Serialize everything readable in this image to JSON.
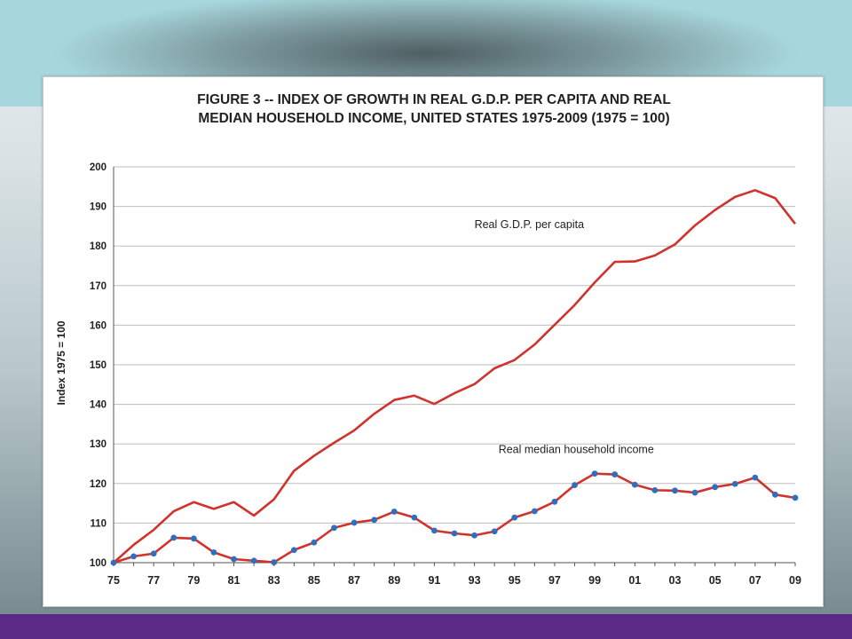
{
  "chart_data": {
    "type": "line",
    "title_lines": [
      "FIGURE 3 -- INDEX OF GROWTH IN REAL G.D.P. PER CAPITA AND REAL",
      "MEDIAN HOUSEHOLD INCOME, UNITED STATES 1975-2009 (1975 = 100)"
    ],
    "ylabel": "Index 1975 = 100",
    "xlabel": "",
    "ylim": [
      100,
      200
    ],
    "yticks": [
      100,
      110,
      120,
      130,
      140,
      150,
      160,
      170,
      180,
      190,
      200
    ],
    "x": [
      1975,
      1976,
      1977,
      1978,
      1979,
      1980,
      1981,
      1982,
      1983,
      1984,
      1985,
      1986,
      1987,
      1988,
      1989,
      1990,
      1991,
      1992,
      1993,
      1994,
      1995,
      1996,
      1997,
      1998,
      1999,
      2000,
      2001,
      2002,
      2003,
      2004,
      2005,
      2006,
      2007,
      2008,
      2009
    ],
    "xtick_labels": [
      "75",
      "77",
      "79",
      "81",
      "83",
      "85",
      "87",
      "89",
      "91",
      "93",
      "95",
      "97",
      "99",
      "01",
      "03",
      "05",
      "07",
      "09"
    ],
    "grid": true,
    "legend": "none",
    "series": [
      {
        "name": "Real G.D.P. per capita",
        "color": "#d0322c",
        "markers": false,
        "values": [
          100,
          104.5,
          108.3,
          113,
          115.3,
          113.6,
          115.3,
          111.9,
          116,
          123.2,
          127,
          130.3,
          133.4,
          137.6,
          141.1,
          142.2,
          140.1,
          142.8,
          145.1,
          149.1,
          151.2,
          155.1,
          160.1,
          165.1,
          170.8,
          176,
          176.1,
          177.6,
          180.4,
          185.2,
          189.1,
          192.4,
          194.1,
          192.1,
          185.6
        ]
      },
      {
        "name": "Real median household income",
        "color": "#d0322c",
        "markers": true,
        "marker_color": "#2f6fbf",
        "values": [
          100,
          101.6,
          102.3,
          106.3,
          106.1,
          102.6,
          100.9,
          100.5,
          100.1,
          103.2,
          105.1,
          108.8,
          110.1,
          110.8,
          112.9,
          111.4,
          108.1,
          107.4,
          106.9,
          107.9,
          111.4,
          113,
          115.4,
          119.6,
          122.5,
          122.3,
          119.7,
          118.3,
          118.2,
          117.7,
          119.1,
          119.9,
          121.5,
          117.2,
          116.4
        ]
      }
    ],
    "annotations": [
      {
        "text": "Real G.D.P. per capita",
        "x": 1993,
        "y": 184.5
      },
      {
        "text": "Real median household income",
        "x": 1994.2,
        "y": 127.7
      }
    ]
  }
}
